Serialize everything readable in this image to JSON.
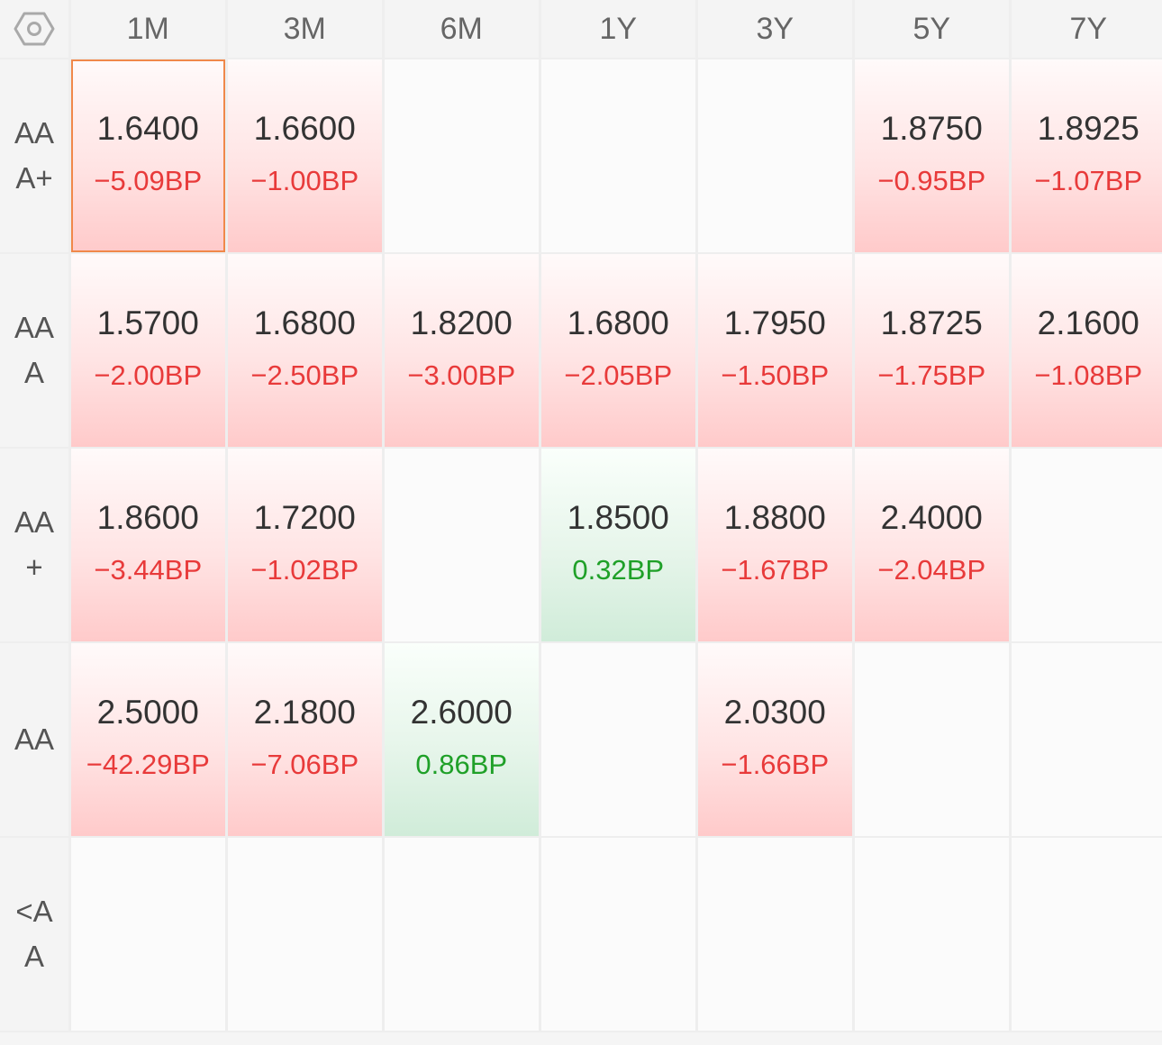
{
  "settings_icon": "hexagon-nut-icon",
  "colors": {
    "negative": "#e83a3a",
    "positive": "#1fa028",
    "selected_border": "#f0884a"
  },
  "columns": [
    "1M",
    "3M",
    "6M",
    "1Y",
    "3Y",
    "5Y",
    "7Y"
  ],
  "rows": [
    {
      "label_lines": [
        "AA",
        "A+"
      ],
      "cells": [
        {
          "value": "1.6400",
          "change": "−5.09BP",
          "dir": "neg",
          "selected": true
        },
        {
          "value": "1.6600",
          "change": "−1.00BP",
          "dir": "neg"
        },
        null,
        null,
        null,
        {
          "value": "1.8750",
          "change": "−0.95BP",
          "dir": "neg"
        },
        {
          "value": "1.8925",
          "change": "−1.07BP",
          "dir": "neg"
        }
      ]
    },
    {
      "label_lines": [
        "AA",
        "A"
      ],
      "cells": [
        {
          "value": "1.5700",
          "change": "−2.00BP",
          "dir": "neg"
        },
        {
          "value": "1.6800",
          "change": "−2.50BP",
          "dir": "neg"
        },
        {
          "value": "1.8200",
          "change": "−3.00BP",
          "dir": "neg"
        },
        {
          "value": "1.6800",
          "change": "−2.05BP",
          "dir": "neg"
        },
        {
          "value": "1.7950",
          "change": "−1.50BP",
          "dir": "neg"
        },
        {
          "value": "1.8725",
          "change": "−1.75BP",
          "dir": "neg"
        },
        {
          "value": "2.1600",
          "change": "−1.08BP",
          "dir": "neg"
        }
      ]
    },
    {
      "label_lines": [
        "AA",
        "+"
      ],
      "cells": [
        {
          "value": "1.8600",
          "change": "−3.44BP",
          "dir": "neg"
        },
        {
          "value": "1.7200",
          "change": "−1.02BP",
          "dir": "neg"
        },
        null,
        {
          "value": "1.8500",
          "change": "0.32BP",
          "dir": "pos"
        },
        {
          "value": "1.8800",
          "change": "−1.67BP",
          "dir": "neg"
        },
        {
          "value": "2.4000",
          "change": "−2.04BP",
          "dir": "neg"
        },
        null
      ]
    },
    {
      "label_lines": [
        "AA"
      ],
      "cells": [
        {
          "value": "2.5000",
          "change": "−42.29BP",
          "dir": "neg"
        },
        {
          "value": "2.1800",
          "change": "−7.06BP",
          "dir": "neg"
        },
        {
          "value": "2.6000",
          "change": "0.86BP",
          "dir": "pos"
        },
        null,
        {
          "value": "2.0300",
          "change": "−1.66BP",
          "dir": "neg"
        },
        null,
        null
      ]
    },
    {
      "label_lines": [
        "<A",
        "A"
      ],
      "cells": [
        null,
        null,
        null,
        null,
        null,
        null,
        null
      ]
    }
  ]
}
